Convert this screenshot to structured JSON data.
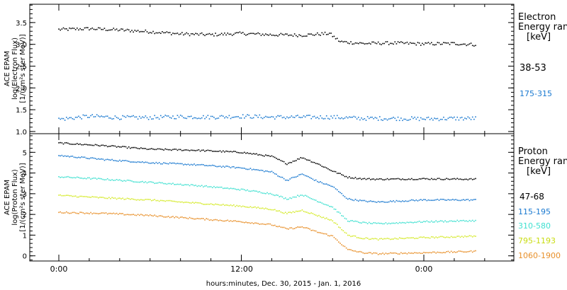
{
  "footer": {
    "xlabel": "hours:minutes, Dec. 30, 2015 - Jan.  1, 2016"
  },
  "x_ticks": [
    "0:00",
    "12:00",
    "0:00"
  ],
  "chart_data": [
    {
      "type": "scatter",
      "panel": "electron",
      "ylabel_lines": [
        "ACE EPAM",
        "log(Electron Flux)",
        "[1/(cm²s ster MeV)]"
      ],
      "y_ticks": [
        "1.0",
        "1.5",
        "2.0",
        "2.5",
        "3.0",
        "3.5"
      ],
      "ylim": [
        0.95,
        3.92
      ],
      "xlim_hours": [
        0,
        44
      ],
      "legend_title": [
        "Electron",
        "Energy range",
        "[keV]"
      ],
      "series": [
        {
          "name": "38-53",
          "color": "#000000",
          "x": [
            0,
            2,
            4,
            6,
            8,
            10,
            12,
            14,
            16,
            17.8,
            18.5,
            20,
            22,
            24,
            26,
            27.5
          ],
          "values": [
            3.34,
            3.36,
            3.33,
            3.29,
            3.24,
            3.22,
            3.25,
            3.22,
            3.21,
            3.25,
            3.06,
            3.02,
            3.03,
            3.01,
            3.02,
            2.99
          ]
        },
        {
          "name": "175-315",
          "color": "#1a79d0",
          "x": [
            0,
            2,
            4,
            6,
            8,
            10,
            12,
            14,
            16,
            18,
            20,
            22,
            24,
            26,
            27.5
          ],
          "values": [
            1.28,
            1.35,
            1.32,
            1.32,
            1.34,
            1.33,
            1.35,
            1.33,
            1.33,
            1.33,
            1.3,
            1.3,
            1.29,
            1.3,
            1.3
          ]
        }
      ]
    },
    {
      "type": "scatter",
      "panel": "proton",
      "ylabel_lines": [
        "ACE EPAM",
        "log(Proton Flux)",
        "[1/(cm²s ster MeV)]"
      ],
      "y_ticks": [
        "0",
        "1",
        "2",
        "3",
        "4",
        "5"
      ],
      "ylim": [
        -0.25,
        5.9
      ],
      "xlim_hours": [
        0,
        44
      ],
      "legend_title": [
        "Proton",
        "Energy range",
        "[keV]"
      ],
      "series": [
        {
          "name": "47-68",
          "color": "#000000",
          "x": [
            0,
            3,
            6,
            9,
            12,
            14,
            15,
            16,
            17,
            18,
            19,
            20,
            21,
            24,
            27.5
          ],
          "values": [
            5.45,
            5.32,
            5.15,
            5.1,
            5.0,
            4.8,
            4.45,
            4.75,
            4.45,
            4.1,
            3.8,
            3.72,
            3.7,
            3.72,
            3.7
          ]
        },
        {
          "name": "115-195",
          "color": "#1a79d0",
          "x": [
            0,
            3,
            6,
            9,
            12,
            14,
            15,
            16,
            17,
            18,
            19,
            20,
            21,
            24,
            27.5
          ],
          "values": [
            4.85,
            4.65,
            4.5,
            4.4,
            4.25,
            4.05,
            3.65,
            3.95,
            3.6,
            3.35,
            2.75,
            2.65,
            2.6,
            2.7,
            2.7
          ]
        },
        {
          "name": "310-580",
          "color": "#3fe0d0",
          "x": [
            0,
            3,
            6,
            9,
            12,
            14,
            15,
            16,
            17,
            18,
            19,
            20,
            21,
            24,
            27.5
          ],
          "values": [
            3.82,
            3.7,
            3.55,
            3.4,
            3.2,
            3.0,
            2.75,
            2.95,
            2.65,
            2.35,
            1.7,
            1.6,
            1.55,
            1.65,
            1.7
          ]
        },
        {
          "name": "795-1193",
          "color": "#d5ea2a",
          "x": [
            0,
            3,
            6,
            9,
            12,
            14,
            15,
            16,
            17,
            18,
            19,
            20,
            21,
            24,
            27.5
          ],
          "values": [
            2.92,
            2.8,
            2.7,
            2.55,
            2.4,
            2.25,
            2.05,
            2.2,
            1.95,
            1.7,
            1.0,
            0.85,
            0.8,
            0.88,
            0.95
          ]
        },
        {
          "name": "1060-1900",
          "color": "#e8902a",
          "x": [
            0,
            3,
            6,
            9,
            12,
            14,
            15,
            16,
            17,
            18,
            19,
            20,
            21,
            24,
            27.5
          ],
          "values": [
            2.1,
            2.05,
            1.95,
            1.8,
            1.65,
            1.5,
            1.3,
            1.4,
            1.15,
            0.95,
            0.3,
            0.15,
            0.1,
            0.15,
            0.22
          ]
        }
      ]
    }
  ]
}
